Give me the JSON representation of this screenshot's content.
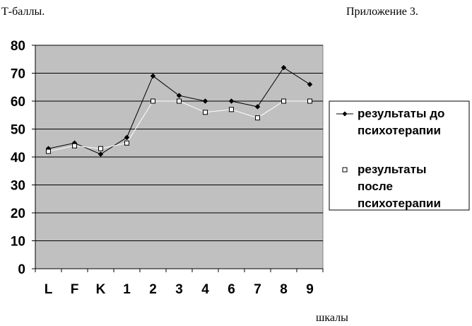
{
  "header": {
    "left_text": "Т-баллы.",
    "right_text": "Приложение 3."
  },
  "footer": {
    "x_unit_text": "шкалы"
  },
  "chart_data": {
    "type": "line",
    "title": "",
    "xlabel": "шкалы",
    "ylabel": "Т-баллы.",
    "categories": [
      "L",
      "F",
      "K",
      "1",
      "2",
      "3",
      "4",
      "6",
      "7",
      "8",
      "9"
    ],
    "ylim": [
      0,
      80
    ],
    "yticks": [
      0,
      10,
      20,
      30,
      40,
      50,
      60,
      70,
      80
    ],
    "grid": true,
    "legend_position": "right",
    "plot_background": "#c0c0c0",
    "series": [
      {
        "name": "результаты до психотерапии",
        "values": [
          43,
          45,
          41,
          47,
          69,
          62,
          60,
          60,
          58,
          72,
          66
        ],
        "color": "#000000",
        "marker": "diamond"
      },
      {
        "name": "результаты после психотерапии",
        "values": [
          42,
          44,
          43,
          45,
          60,
          60,
          56,
          57,
          54,
          60,
          60
        ],
        "color": "#ffffff",
        "marker": "square"
      }
    ],
    "legend_lines": [
      [
        "результаты до",
        "психотерапии"
      ],
      [
        "результаты",
        "после",
        "психотерапии"
      ]
    ]
  }
}
